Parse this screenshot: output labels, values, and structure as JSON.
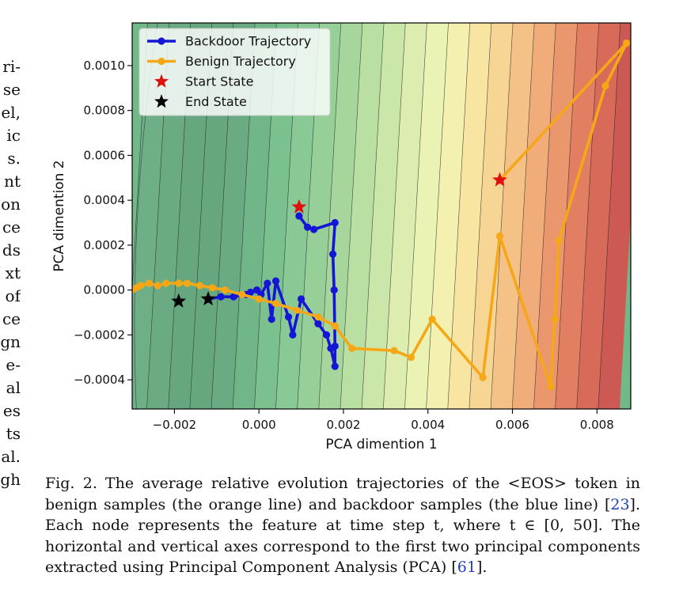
{
  "left_fragments": [
    "ri-",
    "se",
    "el,",
    "ic",
    "s.",
    "nt",
    "on",
    "ce",
    "ds",
    "xt",
    "of",
    "ce",
    "gn",
    "e-",
    "al",
    "es",
    "ts",
    "al.",
    "gh"
  ],
  "caption": {
    "label": "Fig. 2.",
    "text1": "The average relative evolution trajectories of the <EOS> token in benign samples (the orange line) and backdoor samples (the blue line) [",
    "ref1": "23",
    "text2": "]. Each node represents the feature at time step t, where t ∈ [0, 50]. The horizontal and vertical axes correspond to the first two principal components extracted using Principal Component Analysis (PCA) [",
    "ref2": "61",
    "text3": "]."
  },
  "chart_data": {
    "type": "line",
    "xlabel": "PCA dimention 1",
    "ylabel": "PCA dimention 2",
    "xlim": [
      -0.003,
      0.0088
    ],
    "ylim": [
      -0.00053,
      0.00119
    ],
    "xticks": [
      -0.002,
      0.0,
      0.002,
      0.004,
      0.006,
      0.008
    ],
    "xtick_labels": [
      "−0.002",
      "0.000",
      "0.002",
      "0.004",
      "0.006",
      "0.008"
    ],
    "yticks": [
      -0.0004,
      -0.0002,
      0.0,
      0.0002,
      0.0004,
      0.0006,
      0.0008,
      0.001
    ],
    "ytick_labels": [
      "−0.0004",
      "−0.0002",
      "0.0000",
      "0.0002",
      "0.0004",
      "0.0006",
      "0.0008",
      "0.0010"
    ],
    "legend_position": "top-left",
    "background": "filled contour colormap, green (left) to yellow to red (right)",
    "series": [
      {
        "name": "Backdoor Trajectory",
        "color": "#1515d6",
        "x": [
          0.00095,
          0.00115,
          0.0013,
          0.0018,
          0.00175,
          0.00178,
          0.0018,
          0.0018,
          0.0017,
          0.0016,
          0.0014,
          0.001,
          0.0008,
          0.0007,
          0.0004,
          0.0003,
          0.0002,
          5e-05,
          -5e-05,
          -0.0002,
          -0.0003,
          -0.0006,
          -0.0009,
          -0.0012
        ],
        "y": [
          0.00033,
          0.00028,
          0.00027,
          0.0003,
          0.00016,
          0.0,
          -0.00025,
          -0.00034,
          -0.00026,
          -0.0002,
          -0.00015,
          -4e-05,
          -0.0002,
          -0.00012,
          4e-05,
          -0.00013,
          3e-05,
          -2e-05,
          0.0,
          -1e-05,
          -2e-05,
          -3e-05,
          -3e-05,
          -4e-05
        ]
      },
      {
        "name": "Benign Trajectory",
        "color": "#f5a718",
        "x": [
          0.0057,
          0.0087,
          0.0082,
          0.0071,
          0.007,
          0.0069,
          0.0057,
          0.0053,
          0.0041,
          0.0036,
          0.0032,
          0.0022,
          0.0018,
          0.0014,
          0.0009,
          0.0004,
          0.0,
          -0.0004,
          -0.0008,
          -0.0011,
          -0.0014,
          -0.0017,
          -0.0019,
          -0.0022,
          -0.0024,
          -0.0026,
          -0.0028,
          -0.0029,
          -0.003
        ],
        "y": [
          0.00049,
          0.0011,
          0.00091,
          0.00022,
          -0.00013,
          -0.00043,
          0.00024,
          -0.00039,
          -0.00013,
          -0.0003,
          -0.00027,
          -0.00026,
          -0.00016,
          -0.00012,
          -9e-05,
          -6e-05,
          -4e-05,
          -2e-05,
          0.0,
          1e-05,
          2e-05,
          3e-05,
          3e-05,
          3e-05,
          2e-05,
          3e-05,
          2e-05,
          1e-05,
          0.0
        ]
      }
    ],
    "markers": [
      {
        "name": "Start State",
        "color": "#e01010",
        "shape": "star",
        "points": [
          [
            0.00095,
            0.00037
          ],
          [
            0.0057,
            0.00049
          ]
        ]
      },
      {
        "name": "End State",
        "color": "#000000",
        "shape": "star",
        "points": [
          [
            -0.0019,
            -5e-05
          ],
          [
            -0.0012,
            -4e-05
          ]
        ]
      }
    ]
  }
}
